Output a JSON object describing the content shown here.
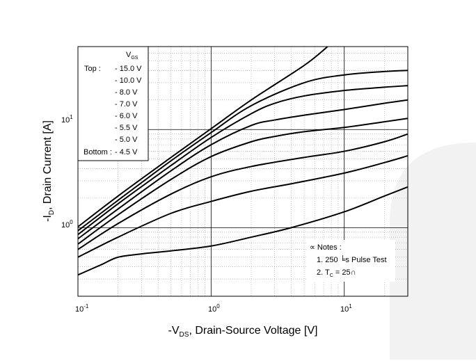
{
  "chart_data": {
    "type": "line",
    "title": "",
    "xlabel": "-V_DS, Drain-Source Voltage [V]",
    "ylabel": "-I_D, Drain Current [A]",
    "x_scale": "log",
    "y_scale": "log",
    "xlim": [
      0.1,
      30
    ],
    "ylim": [
      0.2,
      70
    ],
    "grid": true,
    "legend_position": "top-left",
    "x_ticks": [
      {
        "value": 0.1,
        "base": "10",
        "exp": "-1"
      },
      {
        "value": 1,
        "base": "10",
        "exp": "0"
      },
      {
        "value": 10,
        "base": "10",
        "exp": "1"
      }
    ],
    "y_ticks": [
      {
        "value": 1,
        "base": "10",
        "exp": "0"
      },
      {
        "value": 10,
        "base": "10",
        "exp": "1"
      }
    ],
    "legend": {
      "header_main": "V",
      "header_sub": "GS",
      "top_label": "Top :",
      "bottom_label": "Bottom :",
      "entries": [
        "- 15.0 V",
        "- 10.0 V",
        "- 8.0 V",
        "- 7.0 V",
        "- 6.0 V",
        "- 5.5 V",
        "- 5.0 V",
        "- 4.5 V"
      ]
    },
    "notes": {
      "header": "∝ Notes :",
      "line1": "1. 250 ╘s Pulse Test",
      "line2_prefix": "2. T",
      "line2_sub": "C",
      "line2_suffix": " = 25∩"
    },
    "series": [
      {
        "name": "- 15.0 V",
        "x": [
          0.1,
          0.2,
          0.5,
          1,
          2,
          5,
          7.5
        ],
        "y": [
          1.02,
          2.1,
          5.2,
          10.2,
          20,
          45,
          70
        ]
      },
      {
        "name": "- 10.0 V",
        "x": [
          0.1,
          0.2,
          0.5,
          1,
          2,
          5,
          10,
          20,
          30
        ],
        "y": [
          0.93,
          1.9,
          4.8,
          9.3,
          17.5,
          30,
          36,
          39,
          40
        ]
      },
      {
        "name": "- 8.0 V",
        "x": [
          0.1,
          0.2,
          0.5,
          1,
          2,
          3,
          5,
          10,
          20,
          30
        ],
        "y": [
          0.85,
          1.75,
          4.3,
          8.3,
          14.5,
          18.5,
          22,
          25,
          27,
          28
        ]
      },
      {
        "name": "- 7.0 V",
        "x": [
          0.1,
          0.2,
          0.5,
          1,
          2,
          3,
          5,
          10,
          20,
          30
        ],
        "y": [
          0.77,
          1.55,
          3.8,
          7.0,
          11,
          12.5,
          14,
          16,
          18.5,
          20
        ]
      },
      {
        "name": "- 6.0 V",
        "x": [
          0.1,
          0.2,
          0.5,
          1,
          2,
          3,
          5,
          10,
          20,
          30
        ],
        "y": [
          0.68,
          1.35,
          3.1,
          5.3,
          7.5,
          8.5,
          9.5,
          10.5,
          12,
          13
        ]
      },
      {
        "name": "- 5.5 V",
        "x": [
          0.1,
          0.2,
          0.5,
          1,
          2,
          5,
          10,
          20,
          30
        ],
        "y": [
          0.6,
          1.1,
          2.2,
          3.3,
          4.2,
          5.2,
          6.0,
          7.5,
          9.0
        ]
      },
      {
        "name": "- 5.0 V",
        "x": [
          0.1,
          0.2,
          0.5,
          1,
          2,
          4,
          10,
          20,
          30
        ],
        "y": [
          0.5,
          0.8,
          1.4,
          1.85,
          2.35,
          2.8,
          3.6,
          4.6,
          5.4
        ]
      },
      {
        "name": "- 4.5 V",
        "x": [
          0.1,
          0.15,
          0.2,
          0.3,
          0.5,
          1,
          2,
          4,
          10,
          20,
          30
        ],
        "y": [
          0.33,
          0.42,
          0.5,
          0.54,
          0.58,
          0.65,
          0.8,
          1.0,
          1.45,
          2.1,
          2.6
        ]
      }
    ]
  }
}
